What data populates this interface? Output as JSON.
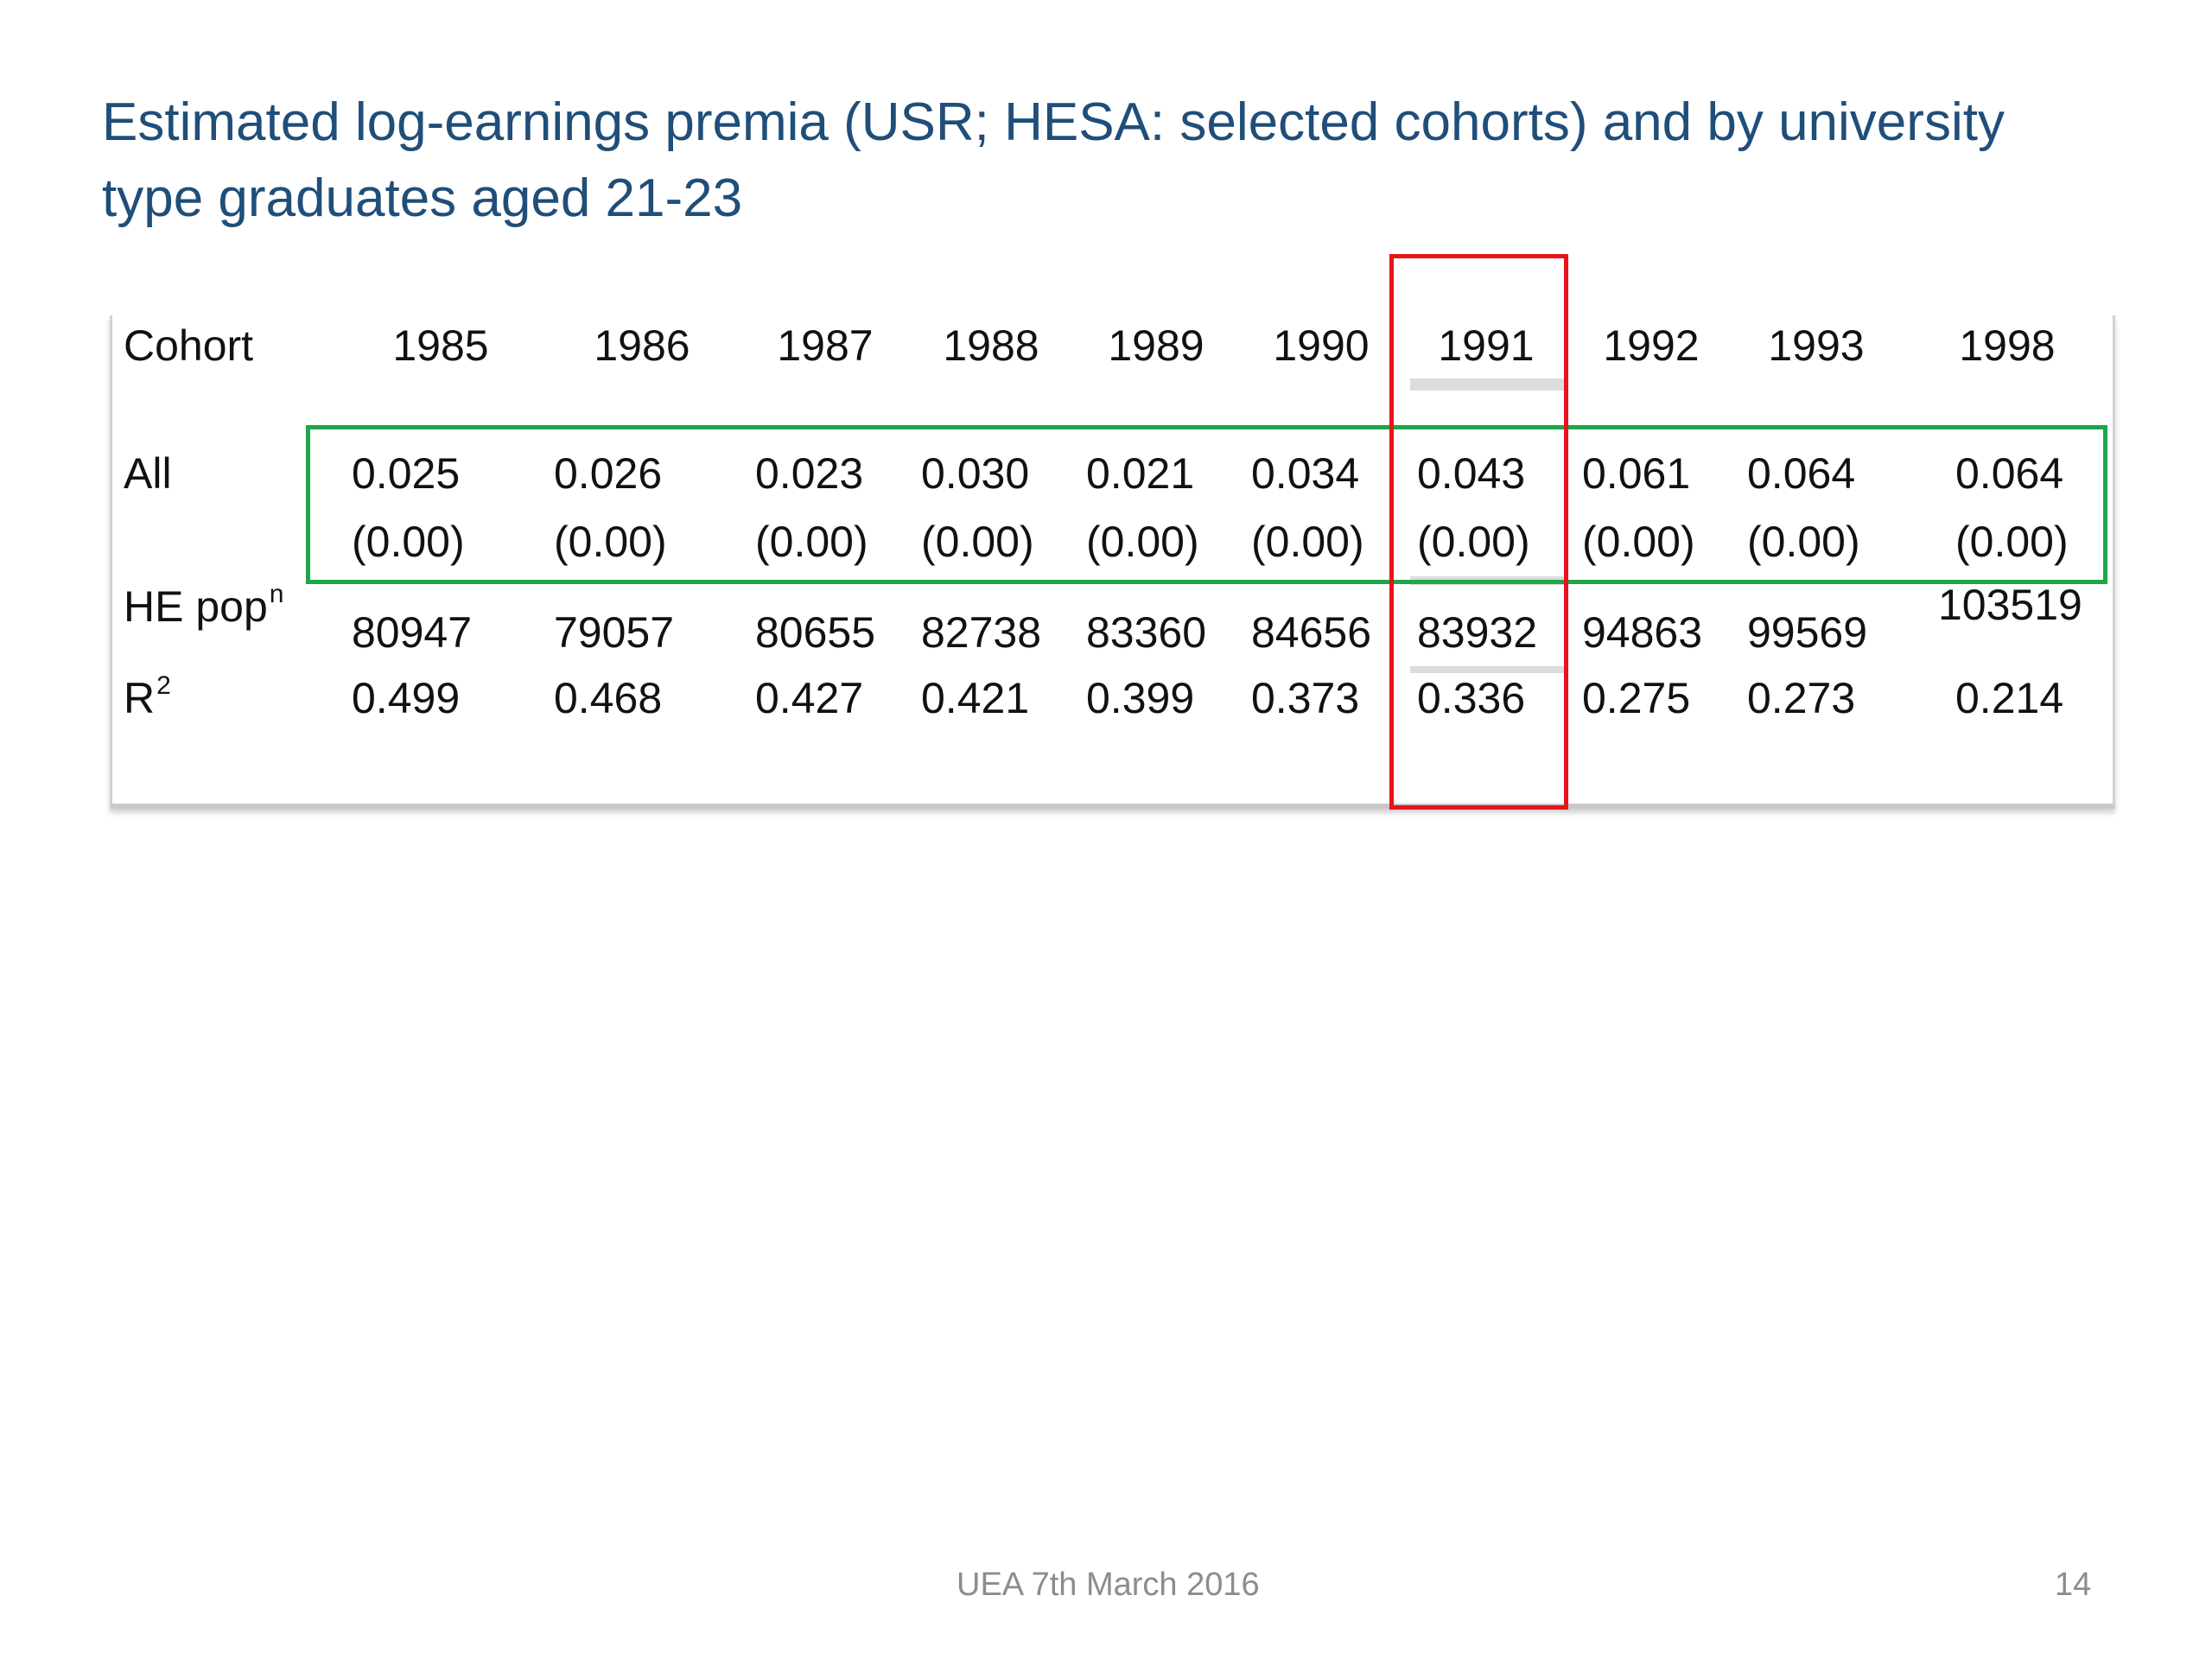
{
  "slide": {
    "title": "Estimated log-earnings premia (USR; HESA: selected cohorts) and by university type graduates aged 21-23",
    "footer_center": "UEA 7th March 2016",
    "page_number": "14"
  },
  "table": {
    "header_label": "Cohort",
    "cohorts": [
      "1985",
      "1986",
      "1987",
      "1988",
      "1989",
      "1990",
      "1991",
      "1992",
      "1993",
      "1998"
    ],
    "rows": {
      "all": {
        "label": "All",
        "estimates": [
          "0.025",
          "0.026",
          "0.023",
          "0.030",
          "0.021",
          "0.034",
          "0.043",
          "0.061",
          "0.064",
          "0.064"
        ],
        "std_errors": [
          "(0.00)",
          "(0.00)",
          "(0.00)",
          "(0.00)",
          "(0.00)",
          "(0.00)",
          "(0.00)",
          "(0.00)",
          "(0.00)",
          "(0.00)"
        ]
      },
      "he_pop": {
        "label": "HE pop",
        "label_sup": "n",
        "values": [
          "80947",
          "79057",
          "80655",
          "82738",
          "83360",
          "84656",
          "83932",
          "94863",
          "99569",
          "103519"
        ]
      },
      "r2": {
        "label": "R",
        "label_sup": "2",
        "values": [
          "0.499",
          "0.468",
          "0.427",
          "0.421",
          "0.399",
          "0.373",
          "0.336",
          "0.275",
          "0.273",
          "0.214"
        ]
      }
    }
  },
  "highlights": {
    "green_row": "All",
    "red_column": "1991",
    "green_color": "#1fa64a",
    "red_color": "#e8141a"
  },
  "colors": {
    "title": "#1f4e79",
    "footer": "#8c8c8c"
  }
}
